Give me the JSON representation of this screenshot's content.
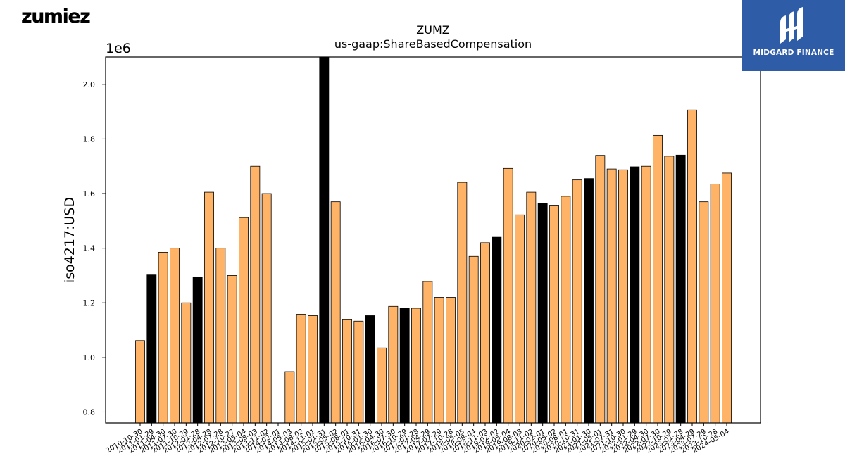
{
  "header": {
    "brand": "zumiez",
    "badge_text": "MIDGARD FINANCE"
  },
  "colors": {
    "bar_default": "#ffb366",
    "bar_highlight": "#000000",
    "bar_edge": "#000000",
    "badge_bg": "#2f5ca6"
  },
  "chart_data": {
    "type": "bar",
    "title": "ZUMZ",
    "subtitle": "us-gaap:ShareBasedCompensation",
    "ylabel": "iso4217:USD",
    "xlabel": "",
    "y_multiplier_label": "1e6",
    "ylim": [
      760000,
      2100000
    ],
    "yticks": [
      800000,
      1000000,
      1200000,
      1400000,
      1600000,
      1800000,
      2000000
    ],
    "ytick_labels": [
      "0.8",
      "1.0",
      "1.2",
      "1.4",
      "1.6",
      "1.8",
      "2.0"
    ],
    "categories": [
      "2010-10-30",
      "2011-01-29",
      "2011-04-30",
      "2011-07-30",
      "2011-10-29",
      "2012-01-28",
      "2012-04-28",
      "2012-07-28",
      "2012-10-27",
      "2013-05-04",
      "2013-08-03",
      "2013-11-02",
      "2014-02-01",
      "2014-05-03",
      "2014-08-02",
      "2014-11-01",
      "2015-01-31",
      "2015-05-02",
      "2015-08-01",
      "2015-10-31",
      "2016-01-30",
      "2016-04-30",
      "2016-07-30",
      "2016-10-29",
      "2017-01-28",
      "2017-04-29",
      "2017-07-29",
      "2017-10-28",
      "2018-05-05",
      "2018-08-04",
      "2018-11-03",
      "2019-02-02",
      "2019-05-04",
      "2019-08-03",
      "2019-11-02",
      "2020-02-01",
      "2020-05-02",
      "2020-08-01",
      "2020-10-31",
      "2021-01-30",
      "2021-05-01",
      "2021-07-31",
      "2021-10-30",
      "2022-01-29",
      "2022-04-30",
      "2022-07-30",
      "2022-10-29",
      "2023-01-28",
      "2023-04-29",
      "2023-07-29",
      "2023-10-28",
      "2024-05-04"
    ],
    "values": [
      1062000,
      1302000,
      1385000,
      1400000,
      1200000,
      1295000,
      1605000,
      1400000,
      1300000,
      1512000,
      1700000,
      1600000,
      null,
      948000,
      1158000,
      1153000,
      2100000,
      1570000,
      1138000,
      1133000,
      1153000,
      1035000,
      1187000,
      1180000,
      1180000,
      1278000,
      1220000,
      1220000,
      1641000,
      1370000,
      1420000,
      1440000,
      1692000,
      1522000,
      1605000,
      1563000,
      1555000,
      1590000,
      1650000,
      1655000,
      1740000,
      1690000,
      1687000,
      1698000,
      1700000,
      1813000,
      1737000,
      1741000,
      1906000,
      1570000,
      1635000,
      1675000
    ],
    "highlighted": [
      false,
      true,
      false,
      false,
      false,
      true,
      false,
      false,
      false,
      false,
      false,
      false,
      false,
      false,
      false,
      false,
      true,
      false,
      false,
      false,
      true,
      false,
      false,
      true,
      false,
      false,
      false,
      false,
      false,
      false,
      false,
      true,
      false,
      false,
      false,
      true,
      false,
      false,
      false,
      true,
      false,
      false,
      false,
      true,
      false,
      false,
      false,
      true,
      false,
      false,
      false,
      false
    ]
  }
}
